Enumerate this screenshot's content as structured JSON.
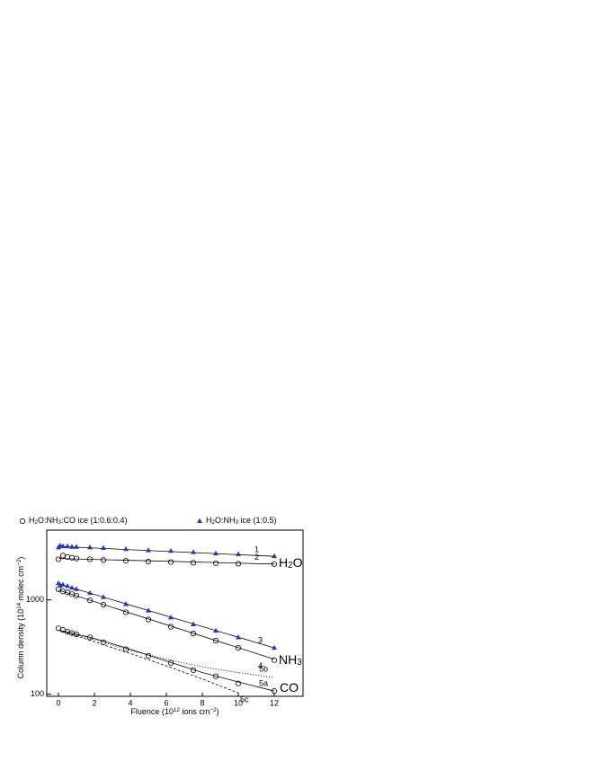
{
  "chart_data": {
    "type": "scatter",
    "xlabel": [
      "Fluence (10",
      "12",
      " ions cm",
      "−2",
      ")"
    ],
    "ylabel": [
      "Column density (10",
      "14",
      " molec cm",
      "−2",
      ")"
    ],
    "xlim": [
      -0.65,
      13.6
    ],
    "xticks": [
      0,
      2,
      4,
      6,
      8,
      10,
      12
    ],
    "ylim": [
      95,
      5500
    ],
    "yticks": [
      100,
      1000
    ],
    "log_y": true,
    "series": [
      {
        "name": [
          "H",
          "2",
          "O:NH",
          "3",
          ":CO ice (1:0.6:0.4)"
        ],
        "marker": "circle",
        "color": "#000000",
        "x": [
          0,
          0.25,
          0.5,
          0.75,
          1,
          1.75,
          2.5,
          3.75,
          5,
          6.25,
          7.5,
          8.75,
          10,
          12
        ],
        "groups": [
          {
            "values": [
              2700,
              2950,
              2850,
              2800,
              2750,
              2700,
              2650,
              2600,
              2550,
              2520,
              2480,
              2450,
              2420,
              2400
            ]
          },
          {
            "values": [
              1300,
              1230,
              1200,
              1150,
              1110,
              990,
              890,
              740,
              620,
              520,
              440,
              370,
              310,
              230
            ]
          },
          {
            "values": [
              500,
              480,
              460,
              445,
              430,
              400,
              355,
              300,
              255,
              215,
              180,
              155,
              130,
              108
            ]
          }
        ]
      },
      {
        "name": [
          "H",
          "2",
          "O:NH",
          "3",
          " ice (1:0.5)"
        ],
        "marker": "triangle",
        "color": "#1f36c8",
        "x": [
          0,
          0.1,
          0.25,
          0.5,
          0.75,
          1,
          1.75,
          2.5,
          3.75,
          5,
          6.25,
          7.5,
          8.75,
          10,
          12
        ],
        "groups": [
          {
            "values": [
              3600,
              3750,
              3700,
              3700,
              3650,
              3650,
              3600,
              3550,
              3450,
              3350,
              3300,
              3200,
              3100,
              3050,
              2900
            ]
          },
          {
            "values": [
              1500,
              1420,
              1450,
              1400,
              1340,
              1300,
              1180,
              1070,
              900,
              770,
              650,
              550,
              470,
              400,
              310
            ]
          }
        ]
      }
    ],
    "fits": [
      {
        "label": "1",
        "style": "solid",
        "x": [
          0,
          12
        ],
        "values": [
          3700,
          2900
        ]
      },
      {
        "label": "2",
        "style": "solid",
        "x": [
          0,
          12
        ],
        "values": [
          2750,
          2400
        ]
      },
      {
        "label": "3",
        "style": "solid",
        "x": [
          0,
          12
        ],
        "values": [
          1480,
          310
        ]
      },
      {
        "label": "4",
        "style": "solid",
        "x": [
          0,
          12
        ],
        "values": [
          1270,
          235
        ]
      },
      {
        "label": "5a",
        "style": "solid",
        "x": [
          0,
          2,
          4,
          6,
          8,
          10,
          12
        ],
        "values": [
          480,
          390,
          300,
          225,
          170,
          135,
          108
        ]
      },
      {
        "label": "5b",
        "style": "dotted",
        "x": [
          0,
          2,
          4,
          6,
          8,
          10,
          12
        ],
        "values": [
          480,
          380,
          290,
          235,
          195,
          170,
          150
        ]
      },
      {
        "label": "5c",
        "style": "dashed",
        "x": [
          0,
          2,
          4,
          6,
          8,
          10
        ],
        "values": [
          480,
          360,
          270,
          200,
          145,
          103
        ]
      }
    ],
    "species_labels": [
      {
        "text": [
          "H",
          "2",
          "O"
        ]
      },
      {
        "text": [
          "NH",
          "3",
          ""
        ]
      },
      {
        "text": [
          "CO"
        ]
      }
    ]
  }
}
